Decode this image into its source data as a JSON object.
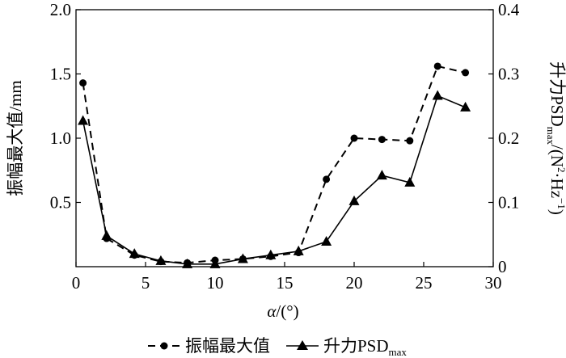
{
  "chart_data": {
    "type": "line",
    "x": [
      0.5,
      2.2,
      4.2,
      6.1,
      8.0,
      10.0,
      12.0,
      14.0,
      16.0,
      18.0,
      20.0,
      22.0,
      24.0,
      26.0,
      28.0
    ],
    "series": [
      {
        "name": "振幅最大值",
        "axis": "left",
        "style": "dashed",
        "marker": "circle",
        "values": [
          1.43,
          0.22,
          0.09,
          0.04,
          0.03,
          0.05,
          0.06,
          0.08,
          0.11,
          0.68,
          1.0,
          0.99,
          0.98,
          1.56,
          1.51
        ]
      },
      {
        "name": "升力PSD",
        "name_sub": "max",
        "axis": "right",
        "style": "solid",
        "marker": "triangle",
        "values": [
          0.227,
          0.048,
          0.02,
          0.009,
          0.004,
          0.004,
          0.012,
          0.018,
          0.024,
          0.039,
          0.102,
          0.142,
          0.131,
          0.266,
          0.248
        ]
      }
    ],
    "xlabel_italic": "α",
    "xlabel_rest": "/(°)",
    "ylabel_left": "振幅最大值/mm",
    "ylabel_right_main": "升力PSD",
    "ylabel_right_sub": "max",
    "ylabel_right_unit_1": "/(N",
    "ylabel_right_unit_sup": "2",
    "ylabel_right_unit_2": "·Hz",
    "ylabel_right_unit_sup2": "−1",
    "ylabel_right_unit_3": ")",
    "xlim": [
      0,
      30
    ],
    "ylim_left": [
      0,
      2.0
    ],
    "ylim_right": [
      0,
      0.4
    ],
    "xticks": [
      "0",
      "5",
      "10",
      "15",
      "20",
      "25",
      "30"
    ],
    "yticks_left": [
      "2.0",
      "1.5",
      "1.0",
      "0.5"
    ],
    "yticks_right": [
      "0.4",
      "0.3",
      "0.2",
      "0.1",
      "0"
    ],
    "grid": false,
    "legend_position": "bottom"
  }
}
